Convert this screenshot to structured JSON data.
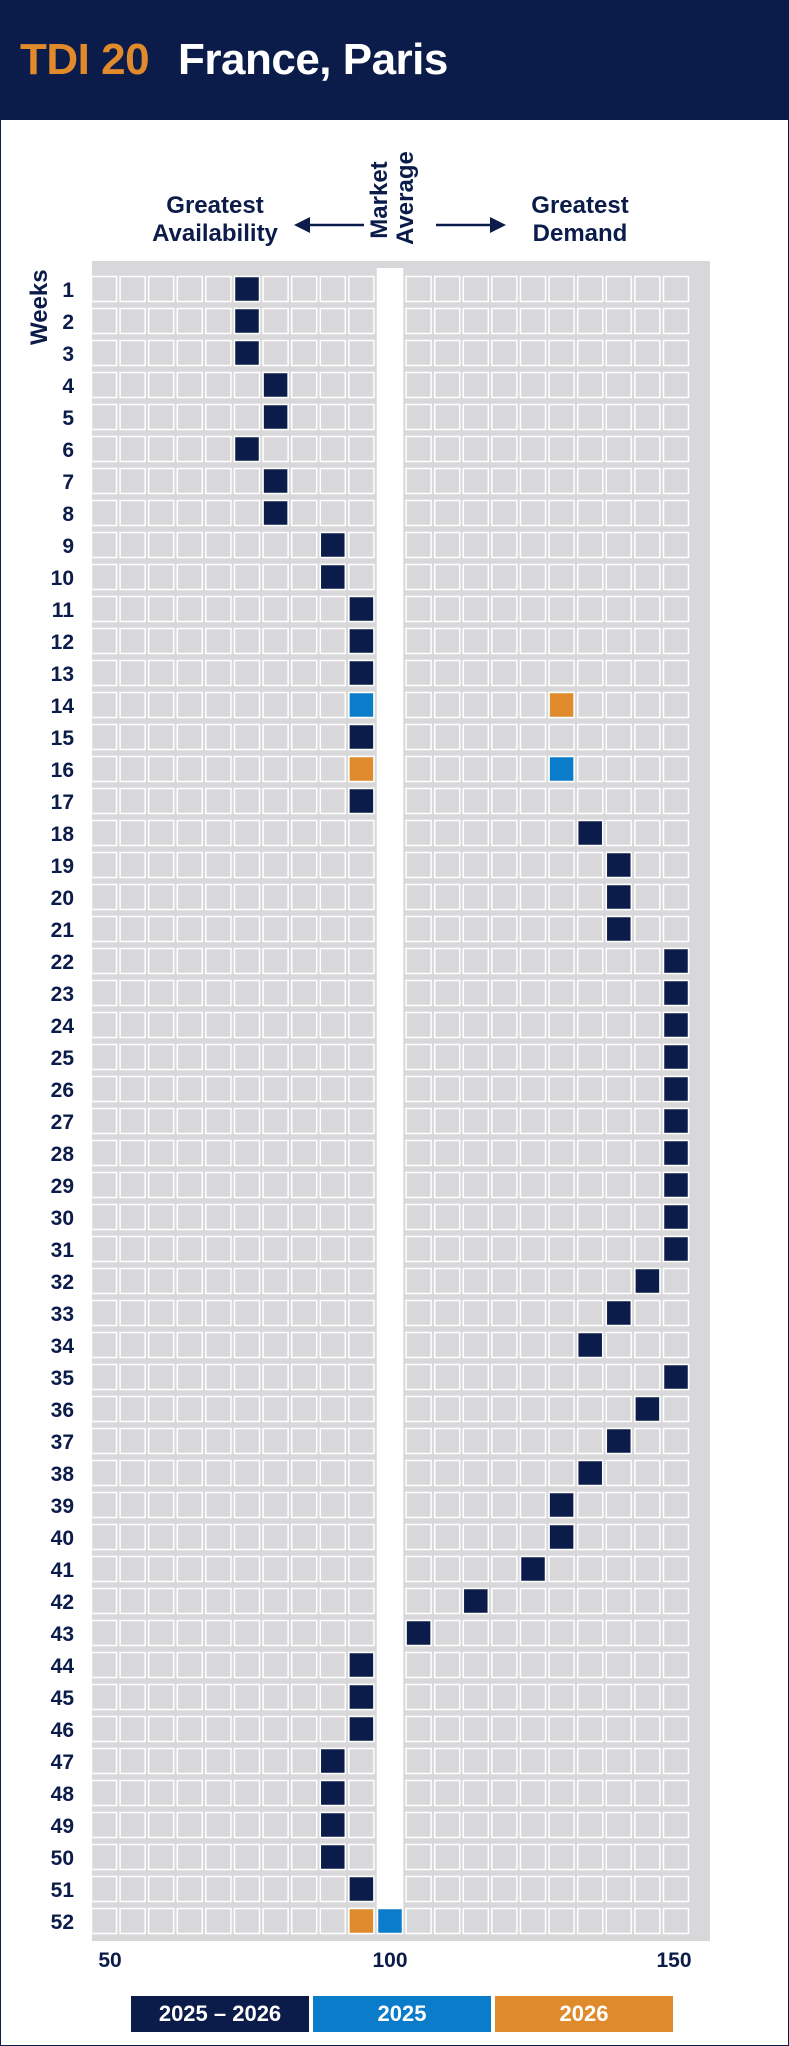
{
  "header": {
    "tdi_label": "TDI 20",
    "location": "France, Paris"
  },
  "annotations": {
    "greatest_availability": "Greatest Availability",
    "greatest_demand": "Greatest Demand",
    "market_average": "Market Average",
    "weeks": "Weeks"
  },
  "colors": {
    "navy": "#0c1c4a",
    "blue": "#0a7cc9",
    "orange": "#df8b2c",
    "cell": "#d8d8da"
  },
  "chart_data": {
    "type": "scatter",
    "title": "",
    "xlabel": "",
    "ylabel": "Weeks",
    "xlim": [
      50,
      150
    ],
    "x_ticks": [
      50,
      100,
      150
    ],
    "x_ticklabels": [
      "50",
      "100",
      "150"
    ],
    "weeks": [
      1,
      2,
      3,
      4,
      5,
      6,
      7,
      8,
      9,
      10,
      11,
      12,
      13,
      14,
      15,
      16,
      17,
      18,
      19,
      20,
      21,
      22,
      23,
      24,
      25,
      26,
      27,
      28,
      29,
      30,
      31,
      32,
      33,
      34,
      35,
      36,
      37,
      38,
      39,
      40,
      41,
      42,
      43,
      44,
      45,
      46,
      47,
      48,
      49,
      50,
      51,
      52
    ],
    "legend_position": "bottom",
    "series": [
      {
        "name": "2025 – 2026",
        "color": "#0c1c4a",
        "points": [
          {
            "week": 1,
            "x": 75
          },
          {
            "week": 2,
            "x": 75
          },
          {
            "week": 3,
            "x": 75
          },
          {
            "week": 4,
            "x": 80
          },
          {
            "week": 5,
            "x": 80
          },
          {
            "week": 6,
            "x": 75
          },
          {
            "week": 7,
            "x": 80
          },
          {
            "week": 8,
            "x": 80
          },
          {
            "week": 9,
            "x": 90
          },
          {
            "week": 10,
            "x": 90
          },
          {
            "week": 11,
            "x": 95
          },
          {
            "week": 12,
            "x": 95
          },
          {
            "week": 13,
            "x": 95
          },
          {
            "week": 15,
            "x": 95
          },
          {
            "week": 17,
            "x": 95
          },
          {
            "week": 18,
            "x": 135
          },
          {
            "week": 19,
            "x": 140
          },
          {
            "week": 20,
            "x": 140
          },
          {
            "week": 21,
            "x": 140
          },
          {
            "week": 22,
            "x": 150
          },
          {
            "week": 23,
            "x": 150
          },
          {
            "week": 24,
            "x": 150
          },
          {
            "week": 25,
            "x": 150
          },
          {
            "week": 26,
            "x": 150
          },
          {
            "week": 27,
            "x": 150
          },
          {
            "week": 28,
            "x": 150
          },
          {
            "week": 29,
            "x": 150
          },
          {
            "week": 30,
            "x": 150
          },
          {
            "week": 31,
            "x": 150
          },
          {
            "week": 32,
            "x": 145
          },
          {
            "week": 33,
            "x": 140
          },
          {
            "week": 34,
            "x": 135
          },
          {
            "week": 35,
            "x": 150
          },
          {
            "week": 36,
            "x": 145
          },
          {
            "week": 37,
            "x": 140
          },
          {
            "week": 38,
            "x": 135
          },
          {
            "week": 39,
            "x": 130
          },
          {
            "week": 40,
            "x": 130
          },
          {
            "week": 41,
            "x": 125
          },
          {
            "week": 42,
            "x": 115
          },
          {
            "week": 43,
            "x": 105
          },
          {
            "week": 44,
            "x": 95
          },
          {
            "week": 45,
            "x": 95
          },
          {
            "week": 46,
            "x": 95
          },
          {
            "week": 47,
            "x": 90
          },
          {
            "week": 48,
            "x": 90
          },
          {
            "week": 49,
            "x": 90
          },
          {
            "week": 50,
            "x": 90
          },
          {
            "week": 51,
            "x": 95
          }
        ]
      },
      {
        "name": "2025",
        "color": "#0a7cc9",
        "points": [
          {
            "week": 14,
            "x": 95
          },
          {
            "week": 16,
            "x": 130
          },
          {
            "week": 52,
            "x": 100
          }
        ]
      },
      {
        "name": "2026",
        "color": "#df8b2c",
        "points": [
          {
            "week": 14,
            "x": 130
          },
          {
            "week": 16,
            "x": 95
          },
          {
            "week": 52,
            "x": 95
          }
        ]
      }
    ]
  }
}
